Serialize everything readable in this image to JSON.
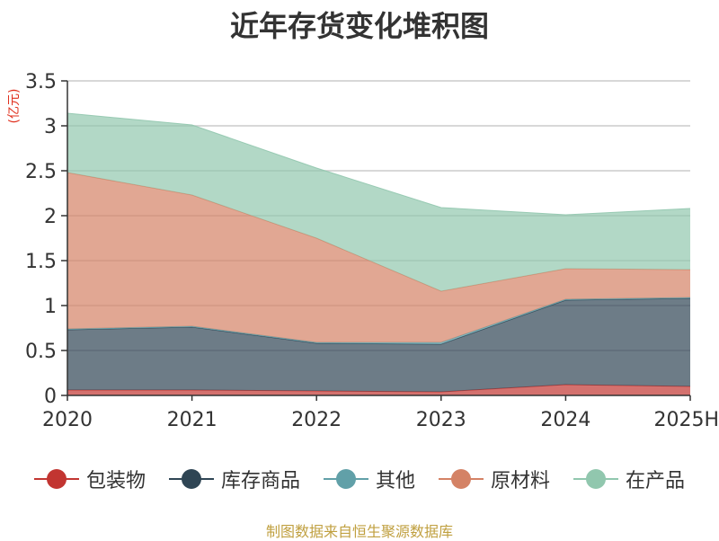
{
  "chart_data": {
    "type": "area",
    "stacked": true,
    "title": "近年存货变化堆积图",
    "ylabel": "(亿元)",
    "x": [
      "2020",
      "2021",
      "2022",
      "2023",
      "2024",
      "2025H"
    ],
    "ylim": [
      0,
      3.5
    ],
    "yticks": [
      "0",
      "0.5",
      "1",
      "1.5",
      "2",
      "2.5",
      "3",
      "3.5"
    ],
    "grid": true,
    "legend_position": "bottom",
    "series": [
      {
        "name": "包装物",
        "values": [
          0.06,
          0.06,
          0.05,
          0.04,
          0.12,
          0.1
        ],
        "color": "#c23531"
      },
      {
        "name": "库存商品",
        "values": [
          0.67,
          0.7,
          0.53,
          0.53,
          0.94,
          0.98
        ],
        "color": "#2f4554"
      },
      {
        "name": "其他",
        "values": [
          0.01,
          0.01,
          0.01,
          0.02,
          0.01,
          0.01
        ],
        "color": "#61a0a8"
      },
      {
        "name": "原材料",
        "values": [
          1.74,
          1.46,
          1.16,
          0.57,
          0.34,
          0.31
        ],
        "color": "#d48265"
      },
      {
        "name": "在产品",
        "values": [
          0.66,
          0.78,
          0.78,
          0.93,
          0.6,
          0.68
        ],
        "color": "#91c7ae"
      }
    ]
  },
  "source_note": "制图数据来自恒生聚源数据库"
}
